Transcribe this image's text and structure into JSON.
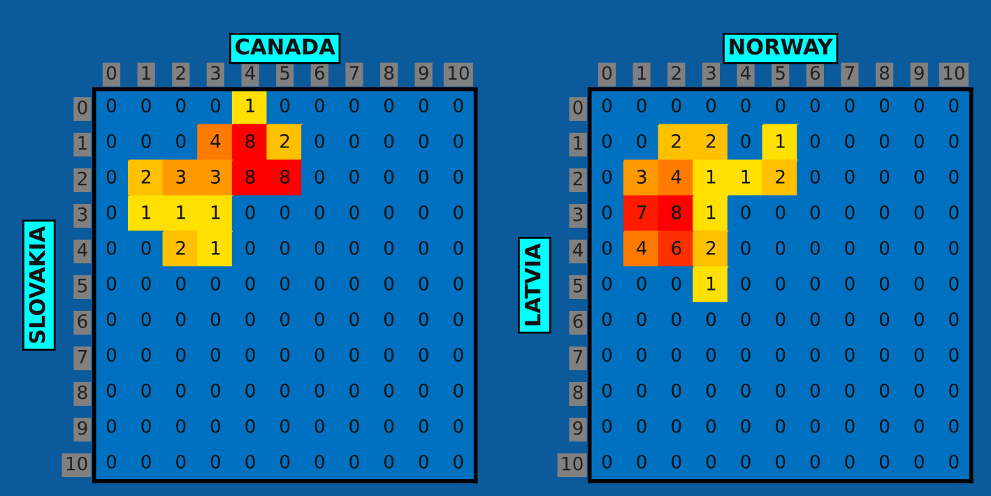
{
  "chart_data": [
    {
      "type": "heatmap",
      "title": "CANADA",
      "ylabel": "SLOVAKIA",
      "data_labels": true,
      "categories": [
        "0",
        "1",
        "2",
        "3",
        "4",
        "5",
        "6",
        "7",
        "8",
        "9",
        "10"
      ],
      "y_categories": [
        "0",
        "1",
        "2",
        "3",
        "4",
        "5",
        "6",
        "7",
        "8",
        "9",
        "10"
      ],
      "cells": [
        [
          0,
          0,
          0,
          0,
          1,
          0,
          0,
          0,
          0,
          0,
          0
        ],
        [
          0,
          0,
          0,
          4,
          8,
          2,
          0,
          0,
          0,
          0,
          0
        ],
        [
          0,
          2,
          3,
          3,
          8,
          8,
          0,
          0,
          0,
          0,
          0
        ],
        [
          0,
          1,
          1,
          1,
          0,
          0,
          0,
          0,
          0,
          0,
          0
        ],
        [
          0,
          0,
          2,
          1,
          0,
          0,
          0,
          0,
          0,
          0,
          0
        ],
        [
          0,
          0,
          0,
          0,
          0,
          0,
          0,
          0,
          0,
          0,
          0
        ],
        [
          0,
          0,
          0,
          0,
          0,
          0,
          0,
          0,
          0,
          0,
          0
        ],
        [
          0,
          0,
          0,
          0,
          0,
          0,
          0,
          0,
          0,
          0,
          0
        ],
        [
          0,
          0,
          0,
          0,
          0,
          0,
          0,
          0,
          0,
          0,
          0
        ],
        [
          0,
          0,
          0,
          0,
          0,
          0,
          0,
          0,
          0,
          0,
          0
        ],
        [
          0,
          0,
          0,
          0,
          0,
          0,
          0,
          0,
          0,
          0,
          0
        ]
      ]
    },
    {
      "type": "heatmap",
      "title": "NORWAY",
      "ylabel": "LATVIA",
      "data_labels": true,
      "categories": [
        "0",
        "1",
        "2",
        "3",
        "4",
        "5",
        "6",
        "7",
        "8",
        "9",
        "10"
      ],
      "y_categories": [
        "0",
        "1",
        "2",
        "3",
        "4",
        "5",
        "6",
        "7",
        "8",
        "9",
        "10"
      ],
      "cells": [
        [
          0,
          0,
          0,
          0,
          0,
          0,
          0,
          0,
          0,
          0,
          0
        ],
        [
          0,
          0,
          2,
          2,
          0,
          1,
          0,
          0,
          0,
          0,
          0
        ],
        [
          0,
          3,
          4,
          1,
          1,
          2,
          0,
          0,
          0,
          0,
          0
        ],
        [
          0,
          7,
          8,
          1,
          0,
          0,
          0,
          0,
          0,
          0,
          0
        ],
        [
          0,
          4,
          6,
          2,
          0,
          0,
          0,
          0,
          0,
          0,
          0
        ],
        [
          0,
          0,
          0,
          1,
          0,
          0,
          0,
          0,
          0,
          0,
          0
        ],
        [
          0,
          0,
          0,
          0,
          0,
          0,
          0,
          0,
          0,
          0,
          0
        ],
        [
          0,
          0,
          0,
          0,
          0,
          0,
          0,
          0,
          0,
          0,
          0
        ],
        [
          0,
          0,
          0,
          0,
          0,
          0,
          0,
          0,
          0,
          0,
          0
        ],
        [
          0,
          0,
          0,
          0,
          0,
          0,
          0,
          0,
          0,
          0,
          0
        ],
        [
          0,
          0,
          0,
          0,
          0,
          0,
          0,
          0,
          0,
          0,
          0
        ]
      ]
    }
  ]
}
